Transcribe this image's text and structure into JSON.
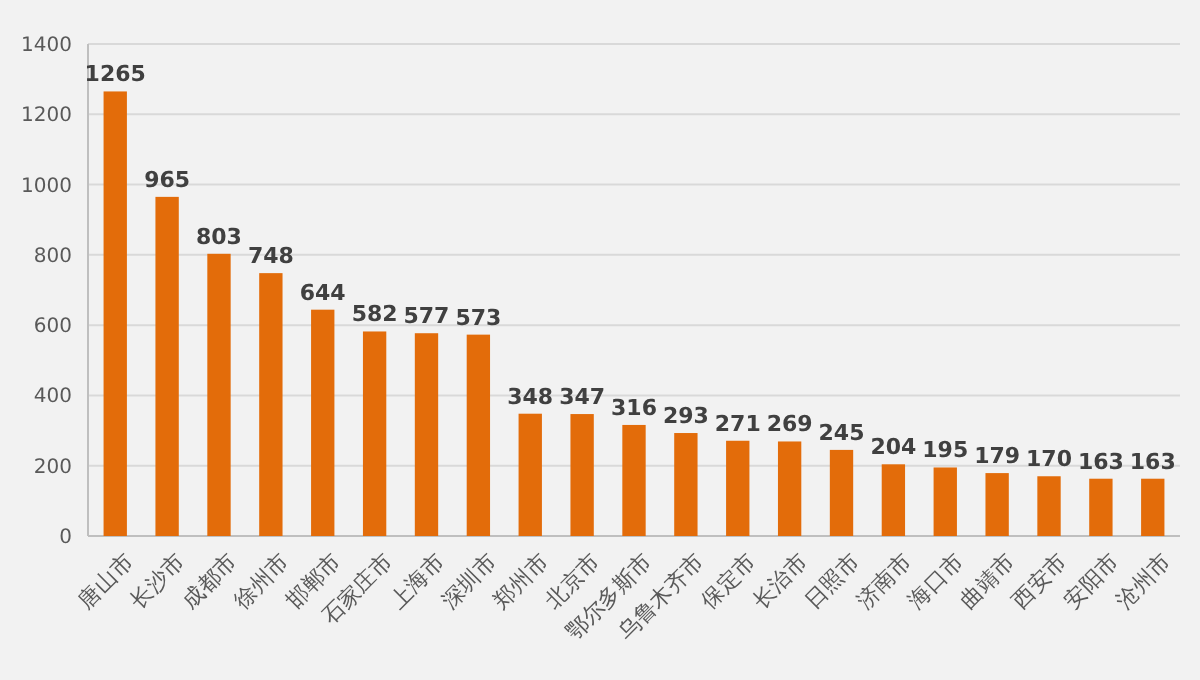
{
  "chart_data": {
    "type": "bar",
    "categories": [
      "唐山市",
      "长沙市",
      "成都市",
      "徐州市",
      "邯郸市",
      "石家庄市",
      "上海市",
      "深圳市",
      "郑州市",
      "北京市",
      "鄂尔多斯市",
      "乌鲁木齐市",
      "保定市",
      "长治市",
      "日照市",
      "济南市",
      "海口市",
      "曲靖市",
      "西安市",
      "安阳市",
      "沧州市"
    ],
    "values": [
      1265,
      965,
      803,
      748,
      644,
      582,
      577,
      573,
      348,
      347,
      316,
      293,
      271,
      269,
      245,
      204,
      195,
      179,
      170,
      163,
      163
    ],
    "color": "#e36c0a",
    "ylim": [
      0,
      1400
    ],
    "yticks": [
      0,
      200,
      400,
      600,
      800,
      1000,
      1200,
      1400
    ],
    "grid": "y",
    "data_labels": true
  }
}
